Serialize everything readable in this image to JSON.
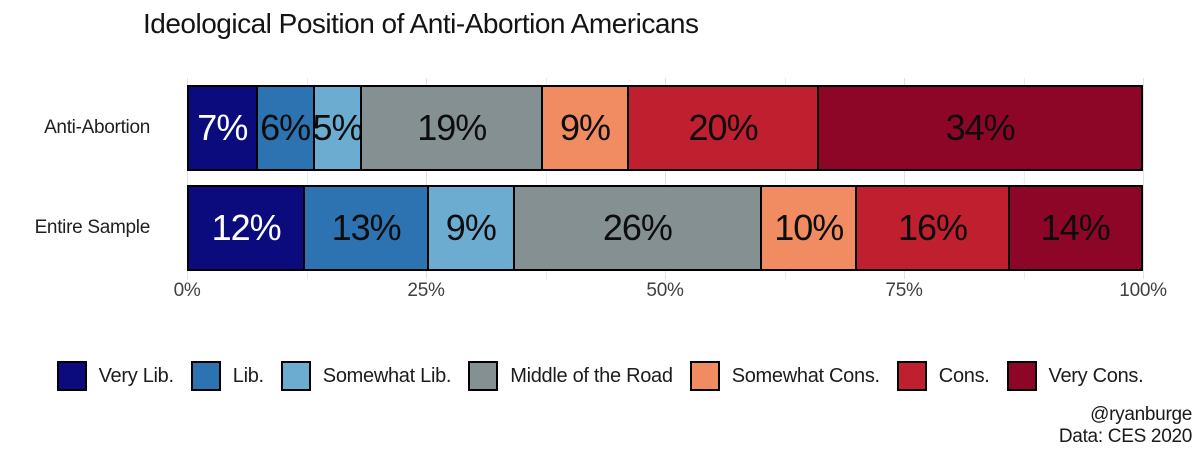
{
  "title": "Ideological Position of Anti-Abortion Americans",
  "chart_data": {
    "type": "bar",
    "stacked": true,
    "orientation": "horizontal",
    "title": "Ideological Position of Anti-Abortion Americans",
    "categories": [
      "Anti-Abortion",
      "Entire Sample"
    ],
    "segments": [
      "Very Lib.",
      "Lib.",
      "Somewhat Lib.",
      "Middle of the Road",
      "Somewhat Cons.",
      "Cons.",
      "Very Cons."
    ],
    "segment_colors": [
      "#0b0b7e",
      "#2d73b2",
      "#6cacd1",
      "#859093",
      "#f08b62",
      "#bf1f2e",
      "#8e0627"
    ],
    "series": [
      {
        "name": "Anti-Abortion",
        "values": [
          7,
          6,
          5,
          19,
          9,
          20,
          34
        ]
      },
      {
        "name": "Entire Sample",
        "values": [
          12,
          13,
          9,
          26,
          10,
          16,
          14
        ]
      }
    ],
    "value_label_format": "percent",
    "x_ticks": [
      {
        "value": 0,
        "label": "0%"
      },
      {
        "value": 25,
        "label": "25%"
      },
      {
        "value": 50,
        "label": "50%"
      },
      {
        "value": 75,
        "label": "75%"
      },
      {
        "value": 100,
        "label": "100%"
      }
    ],
    "xlim": [
      0,
      100
    ],
    "minor_grid_step": 12.5,
    "grid": true,
    "legend_position": "bottom"
  },
  "legend": {
    "items": [
      {
        "label": "Very Lib.",
        "color": "#0b0b7e"
      },
      {
        "label": "Lib.",
        "color": "#2d73b2"
      },
      {
        "label": "Somewhat Lib.",
        "color": "#6cacd1"
      },
      {
        "label": "Middle of the Road",
        "color": "#859093"
      },
      {
        "label": "Somewhat Cons.",
        "color": "#f08b62"
      },
      {
        "label": "Cons.",
        "color": "#bf1f2e"
      },
      {
        "label": "Very Cons.",
        "color": "#8e0627"
      }
    ]
  },
  "attribution": {
    "handle": "@ryanburge",
    "source": "Data: CES 2020"
  },
  "style": {
    "bar_border_color": "#000000",
    "label_light_color": "#ffffff",
    "label_dark_color": "#0d0d0d"
  }
}
